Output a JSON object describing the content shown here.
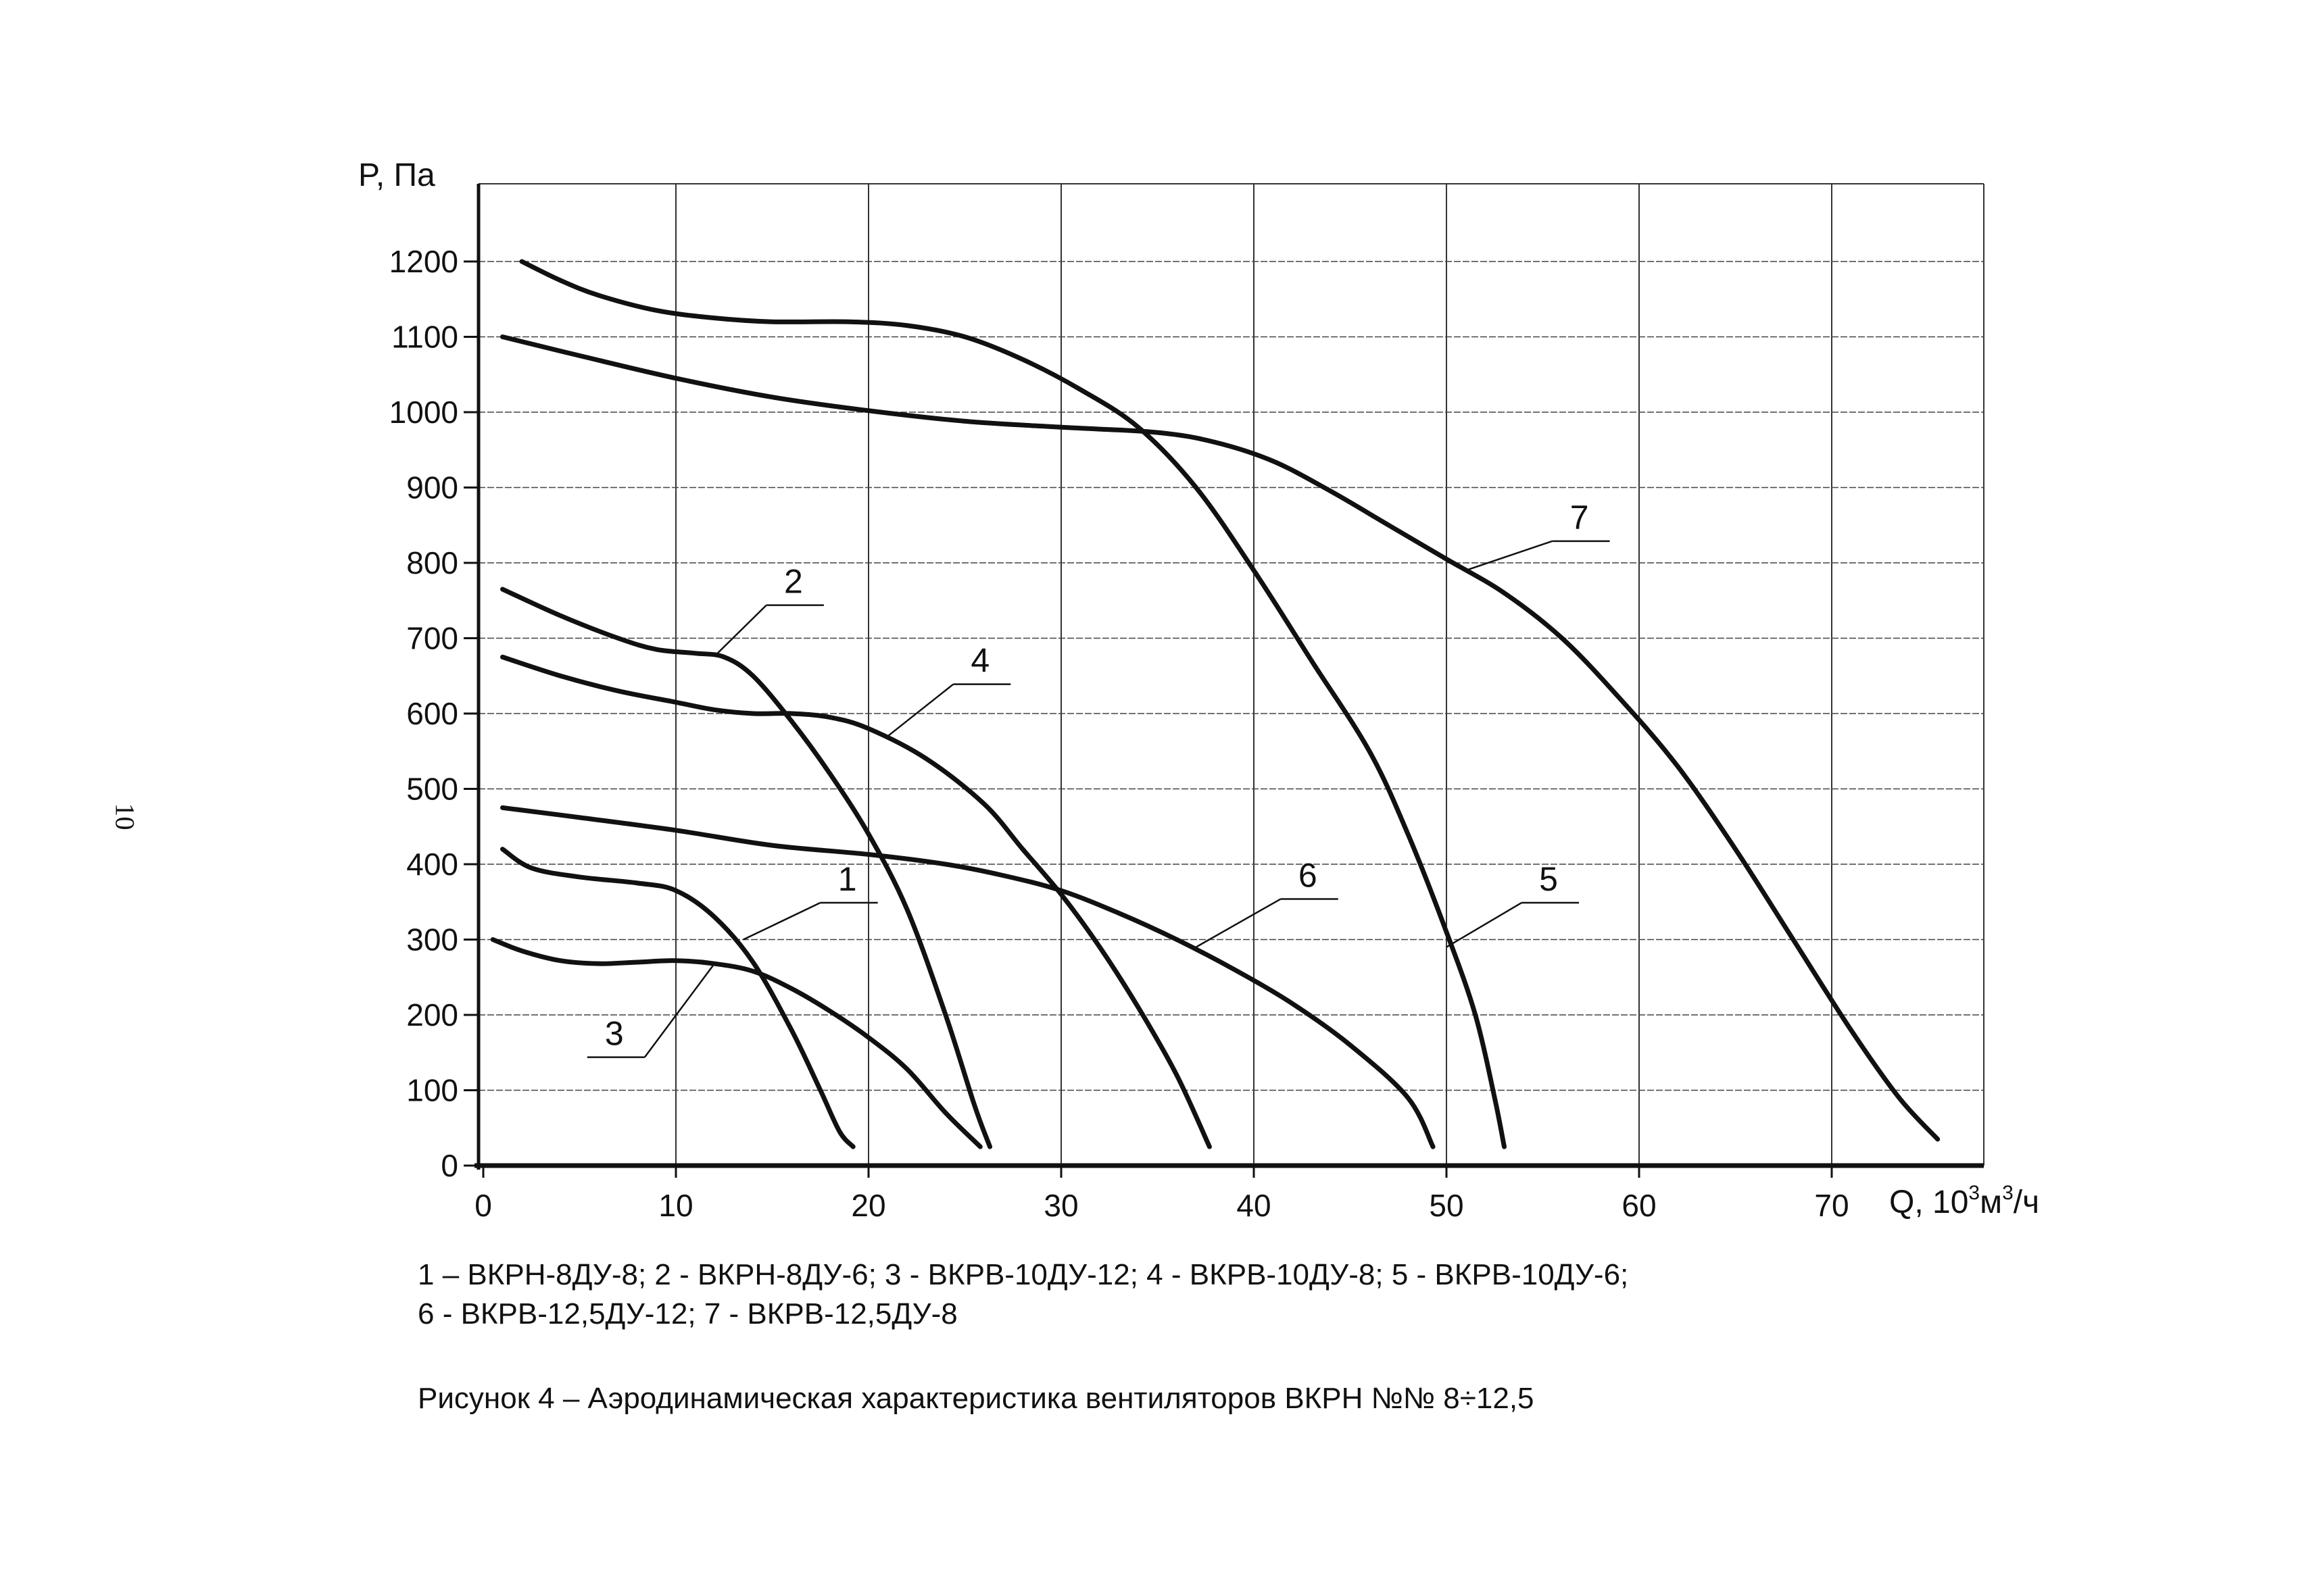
{
  "page_number": "10",
  "chart_data": {
    "type": "line",
    "title": "",
    "ylabel": "P, Па",
    "xlabel_prefix": "Q, 10",
    "xlabel_sup1": "3",
    "xlabel_mid": "м",
    "xlabel_sup2": "3",
    "xlabel_suffix": "/ч",
    "xlim": [
      0,
      78
    ],
    "ylim": [
      0,
      1300
    ],
    "grid": true,
    "x_ticks": [
      0,
      10,
      20,
      30,
      40,
      50,
      60,
      70
    ],
    "y_ticks": [
      0,
      100,
      200,
      300,
      400,
      500,
      600,
      700,
      800,
      900,
      1000,
      1100,
      1200
    ],
    "series": [
      {
        "name": "1",
        "label_pos": [
          18.9,
          365
        ],
        "points": [
          [
            1,
            420
          ],
          [
            2.5,
            395
          ],
          [
            5,
            383
          ],
          [
            8,
            375
          ],
          [
            10,
            365
          ],
          [
            12,
            330
          ],
          [
            14,
            270
          ],
          [
            16,
            180
          ],
          [
            17.5,
            100
          ],
          [
            18.5,
            45
          ],
          [
            19.2,
            25
          ]
        ]
      },
      {
        "name": "2",
        "label_pos": [
          16.1,
          760
        ],
        "points": [
          [
            1,
            765
          ],
          [
            4,
            730
          ],
          [
            7,
            700
          ],
          [
            9,
            685
          ],
          [
            11,
            680
          ],
          [
            12.5,
            675
          ],
          [
            14,
            650
          ],
          [
            16,
            590
          ],
          [
            18,
            520
          ],
          [
            20,
            440
          ],
          [
            22,
            340
          ],
          [
            24,
            200
          ],
          [
            25.5,
            80
          ],
          [
            26.3,
            25
          ]
        ]
      },
      {
        "name": "3",
        "label_pos": [
          6.8,
          160
        ],
        "points": [
          [
            0.5,
            300
          ],
          [
            2,
            285
          ],
          [
            4,
            272
          ],
          [
            6,
            268
          ],
          [
            8,
            270
          ],
          [
            10,
            272
          ],
          [
            12,
            268
          ],
          [
            14,
            258
          ],
          [
            16,
            235
          ],
          [
            18,
            205
          ],
          [
            20,
            170
          ],
          [
            22,
            128
          ],
          [
            24,
            70
          ],
          [
            25.8,
            25
          ]
        ]
      },
      {
        "name": "4",
        "label_pos": [
          25.8,
          655
        ],
        "points": [
          [
            1,
            675
          ],
          [
            4,
            650
          ],
          [
            7,
            630
          ],
          [
            10,
            615
          ],
          [
            12,
            605
          ],
          [
            14,
            600
          ],
          [
            16,
            600
          ],
          [
            18,
            595
          ],
          [
            20,
            580
          ],
          [
            23,
            540
          ],
          [
            26,
            480
          ],
          [
            28,
            420
          ],
          [
            30,
            360
          ],
          [
            32,
            290
          ],
          [
            34,
            210
          ],
          [
            36,
            120
          ],
          [
            37.7,
            25
          ]
        ]
      },
      {
        "name": "5",
        "label_pos": [
          55.3,
          365
        ],
        "points": [
          [
            2,
            1200
          ],
          [
            4,
            1175
          ],
          [
            6,
            1155
          ],
          [
            9,
            1135
          ],
          [
            12,
            1125
          ],
          [
            15,
            1120
          ],
          [
            19,
            1120
          ],
          [
            22,
            1115
          ],
          [
            25,
            1100
          ],
          [
            28,
            1070
          ],
          [
            31,
            1030
          ],
          [
            34,
            980
          ],
          [
            37,
            900
          ],
          [
            40,
            790
          ],
          [
            43,
            670
          ],
          [
            46,
            550
          ],
          [
            48,
            440
          ],
          [
            50,
            310
          ],
          [
            51.5,
            200
          ],
          [
            52.5,
            90
          ],
          [
            53,
            25
          ]
        ]
      },
      {
        "name": "6",
        "label_pos": [
          42.8,
          370
        ],
        "points": [
          [
            1,
            475
          ],
          [
            5,
            462
          ],
          [
            10,
            445
          ],
          [
            15,
            425
          ],
          [
            20,
            413
          ],
          [
            24,
            400
          ],
          [
            27,
            385
          ],
          [
            30,
            365
          ],
          [
            33,
            335
          ],
          [
            36,
            300
          ],
          [
            39,
            260
          ],
          [
            42,
            215
          ],
          [
            45,
            160
          ],
          [
            48,
            90
          ],
          [
            49.3,
            25
          ]
        ]
      },
      {
        "name": "7",
        "label_pos": [
          56.9,
          845
        ],
        "points": [
          [
            1,
            1100
          ],
          [
            5,
            1075
          ],
          [
            10,
            1045
          ],
          [
            15,
            1020
          ],
          [
            20,
            1002
          ],
          [
            25,
            988
          ],
          [
            30,
            980
          ],
          [
            35,
            973
          ],
          [
            38,
            960
          ],
          [
            41,
            935
          ],
          [
            44,
            895
          ],
          [
            47,
            850
          ],
          [
            50,
            805
          ],
          [
            53,
            760
          ],
          [
            56,
            700
          ],
          [
            59,
            620
          ],
          [
            62,
            530
          ],
          [
            65,
            420
          ],
          [
            68,
            300
          ],
          [
            71,
            180
          ],
          [
            73.5,
            90
          ],
          [
            75.5,
            35
          ]
        ]
      }
    ]
  },
  "legend": {
    "line1": "1 – ВКРН-8ДУ-8; 2 - ВКРН-8ДУ-6; 3 - ВКРВ-10ДУ-12; 4 - ВКРВ-10ДУ-8; 5 - ВКРВ-10ДУ-6;",
    "line2": "6 - ВКРВ-12,5ДУ-12; 7 - ВКРВ-12,5ДУ-8"
  },
  "caption": "Рисунок 4 – Аэродинамическая характеристика вентиляторов ВКРН №№ 8÷12,5"
}
